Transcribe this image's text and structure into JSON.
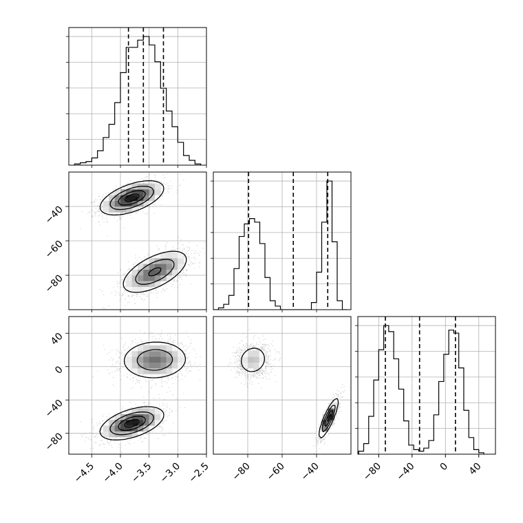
{
  "chart_data": {
    "type": "corner",
    "grid": true,
    "parameters": [
      {
        "range": [
          -4.9,
          -2.5
        ],
        "ticks": [
          -4.5,
          -4.0,
          -3.5,
          -3.0,
          -2.5
        ],
        "tick_labels": [
          "−4.5",
          "−4.0",
          "−3.5",
          "−3.0",
          "−2.5"
        ],
        "quantiles": [
          -3.86,
          -3.6,
          -3.25
        ],
        "histogram": {
          "bin_edges": [
            -4.8,
            -4.7,
            -4.6,
            -4.5,
            -4.4,
            -4.3,
            -4.2,
            -4.1,
            -4.0,
            -3.9,
            -3.8,
            -3.7,
            -3.6,
            -3.5,
            -3.4,
            -3.3,
            -3.2,
            -3.1,
            -3.0,
            -2.9,
            -2.8,
            -2.7,
            -2.6
          ],
          "counts": [
            1,
            2,
            3,
            6,
            12,
            23,
            34,
            52,
            77,
            98,
            98,
            104,
            107,
            100,
            86,
            64,
            45,
            32,
            19,
            8,
            4,
            1
          ]
        }
      },
      {
        "range": [
          -100,
          -20
        ],
        "ticks": [
          -80,
          -60,
          -40
        ],
        "tick_labels": [
          "−80",
          "−60",
          "−40"
        ],
        "quantiles": [
          -79.5,
          -53.5,
          -33.5
        ],
        "histogram": {
          "bin_edges": [
            -100,
            -97,
            -94,
            -91,
            -88,
            -85,
            -82,
            -79,
            -76,
            -73,
            -70,
            -67,
            -64,
            -61,
            -58,
            -55,
            -52,
            -49,
            -46,
            -43,
            -40,
            -37,
            -34,
            -31,
            -28,
            -25,
            -22
          ],
          "counts": [
            0,
            1,
            3,
            8,
            23,
            41,
            48,
            51,
            49,
            37,
            18,
            5,
            2,
            0,
            0,
            0,
            0,
            0,
            0,
            4,
            21,
            49,
            72,
            38,
            5,
            0
          ]
        }
      },
      {
        "range": [
          -105,
          60
        ],
        "ticks": [
          -80,
          -40,
          0,
          40
        ],
        "tick_labels": [
          "−80",
          "−40",
          "0",
          "40"
        ],
        "quantiles": [
          -72,
          -31,
          12
        ],
        "histogram": {
          "bin_edges": [
            -104,
            -98,
            -92,
            -86,
            -80,
            -74,
            -68,
            -62,
            -56,
            -50,
            -44,
            -38,
            -32,
            -26,
            -20,
            -14,
            -8,
            -2,
            4,
            10,
            16,
            22,
            28,
            34,
            40,
            46
          ],
          "counts": [
            2,
            7,
            25,
            49,
            69,
            85,
            81,
            63,
            43,
            22,
            6,
            3,
            2,
            4,
            9,
            26,
            48,
            66,
            82,
            80,
            57,
            29,
            11,
            3,
            1
          ]
        }
      }
    ],
    "pairs": [
      {
        "x": 0,
        "y": 1,
        "modes": [
          {
            "center": [
              -3.8,
              -35
            ],
            "sx": 0.28,
            "sy": 5.0,
            "corr": 0.55,
            "weight": 0.5
          },
          {
            "center": [
              -3.4,
              -78
            ],
            "sx": 0.3,
            "sy": 6.5,
            "corr": 0.6,
            "weight": 0.5
          }
        ]
      },
      {
        "x": 0,
        "y": 2,
        "modes": [
          {
            "center": [
              -3.4,
              8
            ],
            "sx": 0.3,
            "sy": 12,
            "corr": 0.05,
            "weight": 0.5
          },
          {
            "center": [
              -3.8,
              -68
            ],
            "sx": 0.28,
            "sy": 10,
            "corr": 0.5,
            "weight": 0.5
          }
        ]
      },
      {
        "x": 1,
        "y": 2,
        "modes": [
          {
            "center": [
              -77,
              8
            ],
            "sx": 4.8,
            "sy": 10,
            "corr": 0.1,
            "weight": 0.5
          },
          {
            "center": [
              -33,
              -62
            ],
            "sx": 2.8,
            "sy": 12,
            "corr": 0.85,
            "weight": 0.5
          }
        ]
      }
    ]
  }
}
